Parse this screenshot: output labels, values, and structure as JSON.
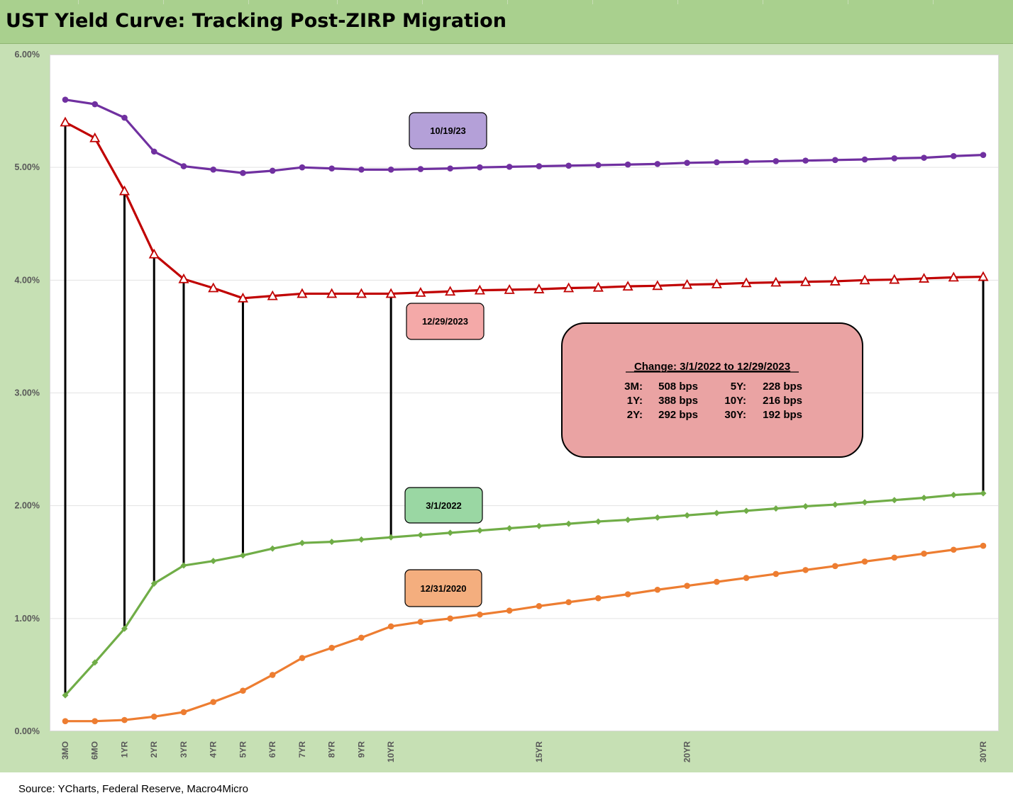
{
  "title": "UST Yield Curve: Tracking Post-ZIRP Migration",
  "source": "Source: YCharts, Federal Reserve, Macro4Micro",
  "chart_data": {
    "type": "line",
    "title": "UST Yield Curve: Tracking Post-ZIRP Migration",
    "xlabel": "",
    "ylabel": "",
    "ylim": [
      0,
      6
    ],
    "y_ticks": [
      "0.00%",
      "1.00%",
      "2.00%",
      "3.00%",
      "4.00%",
      "5.00%",
      "6.00%"
    ],
    "x_points": [
      "3MO",
      "6MO",
      "1YR",
      "2YR",
      "3YR",
      "4YR",
      "5YR",
      "6YR",
      "7YR",
      "8YR",
      "9YR",
      "10YR",
      "11YR",
      "12YR",
      "13YR",
      "14YR",
      "15YR",
      "16YR",
      "17YR",
      "18YR",
      "19YR",
      "20YR",
      "21YR",
      "22YR",
      "23YR",
      "24YR",
      "25YR",
      "26YR",
      "27YR",
      "28YR",
      "29YR",
      "30YR"
    ],
    "x_tick_labels": [
      "3MO",
      "6MO",
      "1YR",
      "2YR",
      "3YR",
      "4YR",
      "5YR",
      "6YR",
      "7YR",
      "8YR",
      "9YR",
      "10YR",
      "",
      "",
      "",
      "",
      "15YR",
      "",
      "",
      "",
      "",
      "20YR",
      "",
      "",
      "",
      "",
      "",
      "",
      "",
      "",
      "",
      "30YR"
    ],
    "grid": true,
    "series": [
      {
        "name": "10/19/23",
        "color": "#7030a0",
        "marker": "circle",
        "values": [
          5.6,
          5.56,
          5.44,
          5.14,
          5.01,
          4.98,
          4.95,
          4.97,
          5.0,
          4.99,
          4.98,
          4.98,
          4.985,
          4.99,
          5.0,
          5.005,
          5.01,
          5.015,
          5.02,
          5.025,
          5.03,
          5.04,
          5.045,
          5.05,
          5.055,
          5.06,
          5.065,
          5.07,
          5.08,
          5.085,
          5.1,
          5.11
        ]
      },
      {
        "name": "12/29/2023",
        "color": "#c00000",
        "marker": "triangle",
        "values": [
          5.4,
          5.26,
          4.79,
          4.23,
          4.01,
          3.93,
          3.84,
          3.86,
          3.88,
          3.88,
          3.88,
          3.88,
          3.89,
          3.9,
          3.91,
          3.915,
          3.92,
          3.93,
          3.935,
          3.945,
          3.95,
          3.96,
          3.965,
          3.975,
          3.98,
          3.985,
          3.99,
          4.0,
          4.005,
          4.015,
          4.025,
          4.03
        ]
      },
      {
        "name": "3/1/2022",
        "color": "#70ad47",
        "marker": "diamond",
        "values": [
          0.32,
          0.61,
          0.91,
          1.31,
          1.47,
          1.51,
          1.56,
          1.62,
          1.67,
          1.68,
          1.7,
          1.72,
          1.74,
          1.76,
          1.78,
          1.8,
          1.82,
          1.84,
          1.86,
          1.875,
          1.895,
          1.915,
          1.935,
          1.955,
          1.975,
          1.995,
          2.01,
          2.03,
          2.05,
          2.07,
          2.095,
          2.11
        ]
      },
      {
        "name": "12/31/2020",
        "color": "#ed7d31",
        "marker": "circle",
        "values": [
          0.09,
          0.09,
          0.1,
          0.13,
          0.17,
          0.26,
          0.36,
          0.5,
          0.65,
          0.74,
          0.83,
          0.93,
          0.97,
          1.0,
          1.035,
          1.07,
          1.11,
          1.145,
          1.18,
          1.215,
          1.255,
          1.29,
          1.325,
          1.36,
          1.395,
          1.43,
          1.465,
          1.505,
          1.54,
          1.575,
          1.61,
          1.645
        ]
      }
    ],
    "difference_lines": {
      "from_series": "12/29/2023",
      "to_series": "3/1/2022",
      "at": [
        "3MO",
        "1YR",
        "2YR",
        "3YR",
        "5YR",
        "10YR",
        "30YR"
      ]
    },
    "annotation_box": {
      "heading": "Change: 3/1/2022 to 12/29/2023",
      "rows": [
        [
          "3M:",
          "508 bps",
          "5Y:",
          "228 bps"
        ],
        [
          "1Y:",
          "388 bps",
          "10Y:",
          "216 bps"
        ],
        [
          "2Y:",
          "292 bps",
          "30Y:",
          "192 bps"
        ]
      ],
      "fill": "#eaa3a3"
    },
    "series_labels": [
      {
        "text": "10/19/23",
        "fill": "#b4a0d8"
      },
      {
        "text": "12/29/2023",
        "fill": "#f4a9a8"
      },
      {
        "text": "3/1/2022",
        "fill": "#9ad7a3"
      },
      {
        "text": "12/31/2020",
        "fill": "#f4ae7e"
      }
    ]
  }
}
